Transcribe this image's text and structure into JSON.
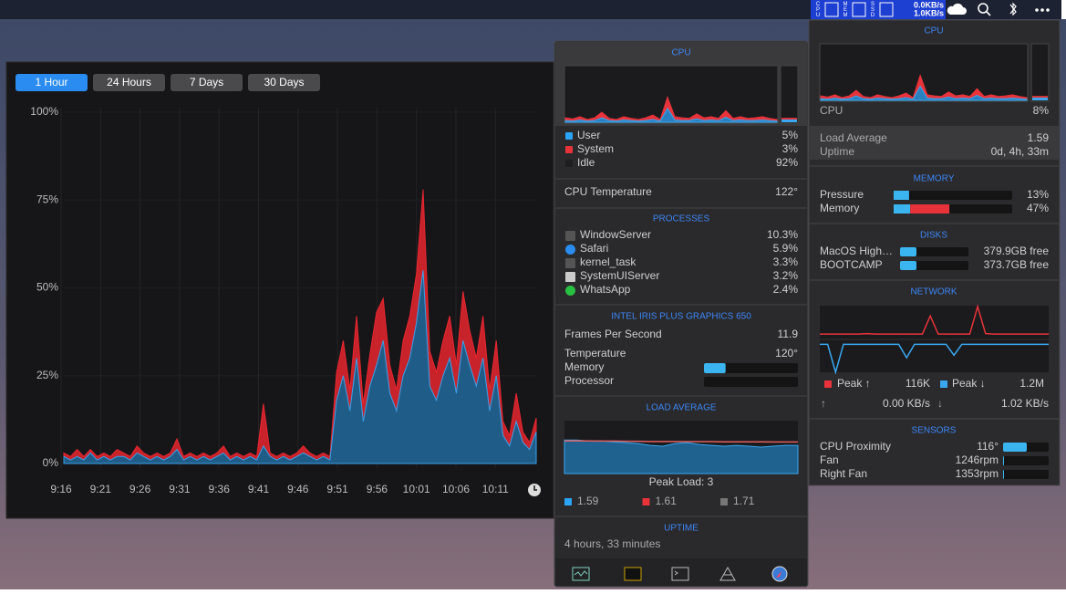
{
  "menubar": {
    "status_labels": [
      "CPU",
      "MEM",
      "SSD"
    ],
    "net_up": "0.0KB/s",
    "net_down": "1.0KB/s"
  },
  "history": {
    "type": "area",
    "ranges": [
      "1 Hour",
      "24 Hours",
      "7 Days",
      "30 Days"
    ],
    "selected": 0,
    "ylim": [
      0,
      100
    ],
    "yticks": [
      {
        "value": 100,
        "label": "100%"
      },
      {
        "value": 75,
        "label": "75%"
      },
      {
        "value": 50,
        "label": "50%"
      },
      {
        "value": 25,
        "label": "25%"
      },
      {
        "value": 0,
        "label": "0%"
      }
    ],
    "xticks": [
      "9:16",
      "9:21",
      "9:26",
      "9:31",
      "9:36",
      "9:41",
      "9:46",
      "9:51",
      "9:56",
      "10:01",
      "10:06",
      "10:11"
    ],
    "series": [
      {
        "color": "#3aa0e8",
        "values": [
          2,
          1,
          2,
          1,
          3,
          1,
          2,
          1,
          2,
          2,
          1,
          3,
          2,
          1,
          2,
          1,
          2,
          4,
          1,
          2,
          1,
          2,
          1,
          2,
          3,
          1,
          2,
          1,
          2,
          1,
          5,
          2,
          1,
          2,
          1,
          2,
          3,
          2,
          1,
          2,
          1,
          18,
          25,
          15,
          30,
          12,
          22,
          28,
          35,
          20,
          15,
          25,
          30,
          40,
          55,
          22,
          18,
          25,
          30,
          20,
          35,
          28,
          22,
          30,
          15,
          25,
          8,
          5,
          12,
          6,
          4,
          9
        ]
      },
      {
        "color": "#e8262f",
        "values": [
          1,
          1,
          2,
          1,
          1,
          1,
          1,
          1,
          2,
          1,
          1,
          2,
          1,
          1,
          1,
          1,
          1,
          3,
          1,
          1,
          1,
          1,
          1,
          1,
          2,
          1,
          1,
          1,
          1,
          1,
          12,
          1,
          1,
          1,
          1,
          1,
          2,
          1,
          1,
          1,
          1,
          8,
          10,
          6,
          12,
          5,
          9,
          15,
          12,
          8,
          6,
          10,
          12,
          14,
          23,
          10,
          8,
          10,
          12,
          8,
          14,
          10,
          8,
          12,
          6,
          10,
          4,
          3,
          8,
          3,
          2,
          4
        ]
      }
    ]
  },
  "cpu_panel": {
    "title": "CPU",
    "graph": {
      "ylim": [
        0,
        100
      ],
      "user": [
        3,
        2,
        4,
        2,
        3,
        8,
        3,
        2,
        4,
        3,
        2,
        3,
        5,
        2,
        25,
        4,
        3,
        3,
        6,
        3,
        4,
        3,
        9,
        3,
        4,
        3,
        3,
        4,
        3,
        2
      ],
      "system": [
        5,
        4,
        6,
        3,
        5,
        10,
        4,
        3,
        6,
        4,
        3,
        5,
        8,
        3,
        20,
        6,
        5,
        4,
        9,
        5,
        6,
        4,
        12,
        4,
        6,
        4,
        5,
        6,
        4,
        3
      ],
      "current": [
        5,
        3
      ]
    },
    "rows": [
      {
        "label": "User",
        "value": "5%",
        "color": "#2aa4f4"
      },
      {
        "label": "System",
        "value": "3%",
        "color": "#e8333a"
      },
      {
        "label": "Idle",
        "value": "92%",
        "color": "#1e1e1e"
      }
    ],
    "temperature": {
      "label": "CPU Temperature",
      "value": "122°"
    }
  },
  "processes": {
    "title": "PROCESSES",
    "rows": [
      {
        "name": "WindowServer",
        "value": "10.3%"
      },
      {
        "name": "Safari",
        "value": "5.9%"
      },
      {
        "name": "kernel_task",
        "value": "3.3%"
      },
      {
        "name": "SystemUIServer",
        "value": "3.2%"
      },
      {
        "name": "WhatsApp",
        "value": "2.4%"
      }
    ]
  },
  "gpu": {
    "title": "INTEL IRIS PLUS GRAPHICS 650",
    "fps": {
      "label": "Frames Per Second",
      "value": 11.9
    },
    "temperature": {
      "label": "Temperature",
      "value": "120°"
    },
    "memory": {
      "label": "Memory",
      "bar": 23
    },
    "processor": {
      "label": "Processor",
      "bar": 0
    }
  },
  "load_average": {
    "title": "LOAD AVERAGE",
    "peak": "Peak Load: 3",
    "ylim": [
      0,
      3
    ],
    "area": [
      1.9,
      1.9,
      1.85,
      1.85,
      1.8,
      1.75,
      1.7,
      1.6,
      1.55,
      1.7,
      1.75,
      1.65,
      1.6,
      1.55,
      1.6,
      1.55,
      1.5,
      1.55,
      1.6,
      1.6
    ],
    "line": [
      1.85,
      1.85,
      1.85,
      1.84,
      1.84,
      1.83,
      1.83,
      1.82,
      1.82,
      1.82,
      1.81,
      1.81,
      1.81,
      1.8,
      1.8,
      1.8,
      1.8,
      1.79,
      1.79,
      1.79
    ],
    "legend": [
      {
        "value": 1.59,
        "color": "#2aa4f4"
      },
      {
        "value": 1.61,
        "color": "#e8333a"
      },
      {
        "value": 1.71,
        "color": "#777777"
      }
    ]
  },
  "uptime": {
    "title": "UPTIME",
    "text": "4 hours, 33 minutes"
  },
  "menu": {
    "cpu": {
      "title": "CPU",
      "label": "CPU",
      "value": "8%",
      "graph": {
        "ylim": [
          0,
          100
        ],
        "user": [
          3,
          2,
          4,
          2,
          3,
          8,
          3,
          2,
          4,
          3,
          2,
          3,
          5,
          2,
          25,
          4,
          3,
          3,
          6,
          3,
          4,
          3,
          9,
          3,
          4,
          3,
          3,
          4,
          3,
          2
        ],
        "system": [
          5,
          4,
          6,
          3,
          5,
          10,
          4,
          3,
          6,
          4,
          3,
          5,
          8,
          3,
          20,
          6,
          5,
          4,
          9,
          5,
          6,
          4,
          12,
          4,
          6,
          4,
          5,
          6,
          4,
          3
        ],
        "current": [
          5,
          3
        ]
      }
    },
    "load": {
      "label": "Load Average",
      "value": 1.59
    },
    "uptime": {
      "label": "Uptime",
      "value": "0d, 4h, 33m"
    },
    "memory": {
      "title": "MEMORY",
      "rows": [
        {
          "label": "Pressure",
          "value": "13%",
          "bar": [
            13
          ]
        },
        {
          "label": "Memory",
          "value": "47%",
          "bar": [
            14,
            33
          ]
        }
      ]
    },
    "disks": {
      "title": "DISKS",
      "rows": [
        {
          "label": "MacOS High…",
          "value": "379.9GB free",
          "bar": 24
        },
        {
          "label": "BOOTCAMP",
          "value": "373.7GB free",
          "bar": 24
        }
      ]
    },
    "network": {
      "title": "NETWORK",
      "up": [
        10,
        10,
        10,
        10,
        10,
        10,
        12,
        10,
        10,
        10,
        10,
        10,
        10,
        10,
        80,
        10,
        10,
        10,
        10,
        10,
        116,
        12,
        10,
        10,
        10,
        10,
        10,
        10,
        10,
        10
      ],
      "down": [
        0.05,
        0.05,
        1.2,
        0.05,
        0.05,
        0.05,
        0.05,
        0.05,
        0.05,
        0.05,
        0.05,
        0.6,
        0.05,
        0.05,
        0.05,
        0.05,
        0.05,
        0.5,
        0.05,
        0.05,
        0.05,
        0.05,
        0.05,
        0.05,
        0.05,
        0.05,
        0.05,
        0.05,
        0.05,
        0.05
      ],
      "peak_up": {
        "label": "Peak ↑",
        "value": "116K"
      },
      "peak_down": {
        "label": "Peak ↓",
        "value": "1.2M"
      },
      "up_arrow": "↑",
      "rate_up": "0.00 KB/s",
      "down_arrow": "↓",
      "rate_down": "1.02 KB/s"
    },
    "sensors": {
      "title": "SENSORS",
      "rows": [
        {
          "label": "CPU Proximity",
          "value": "116°",
          "bar": 52
        },
        {
          "label": "Fan",
          "value": "1246rpm",
          "bar": 2
        },
        {
          "label": "Right Fan",
          "value": "1353rpm",
          "bar": 2
        }
      ]
    }
  }
}
